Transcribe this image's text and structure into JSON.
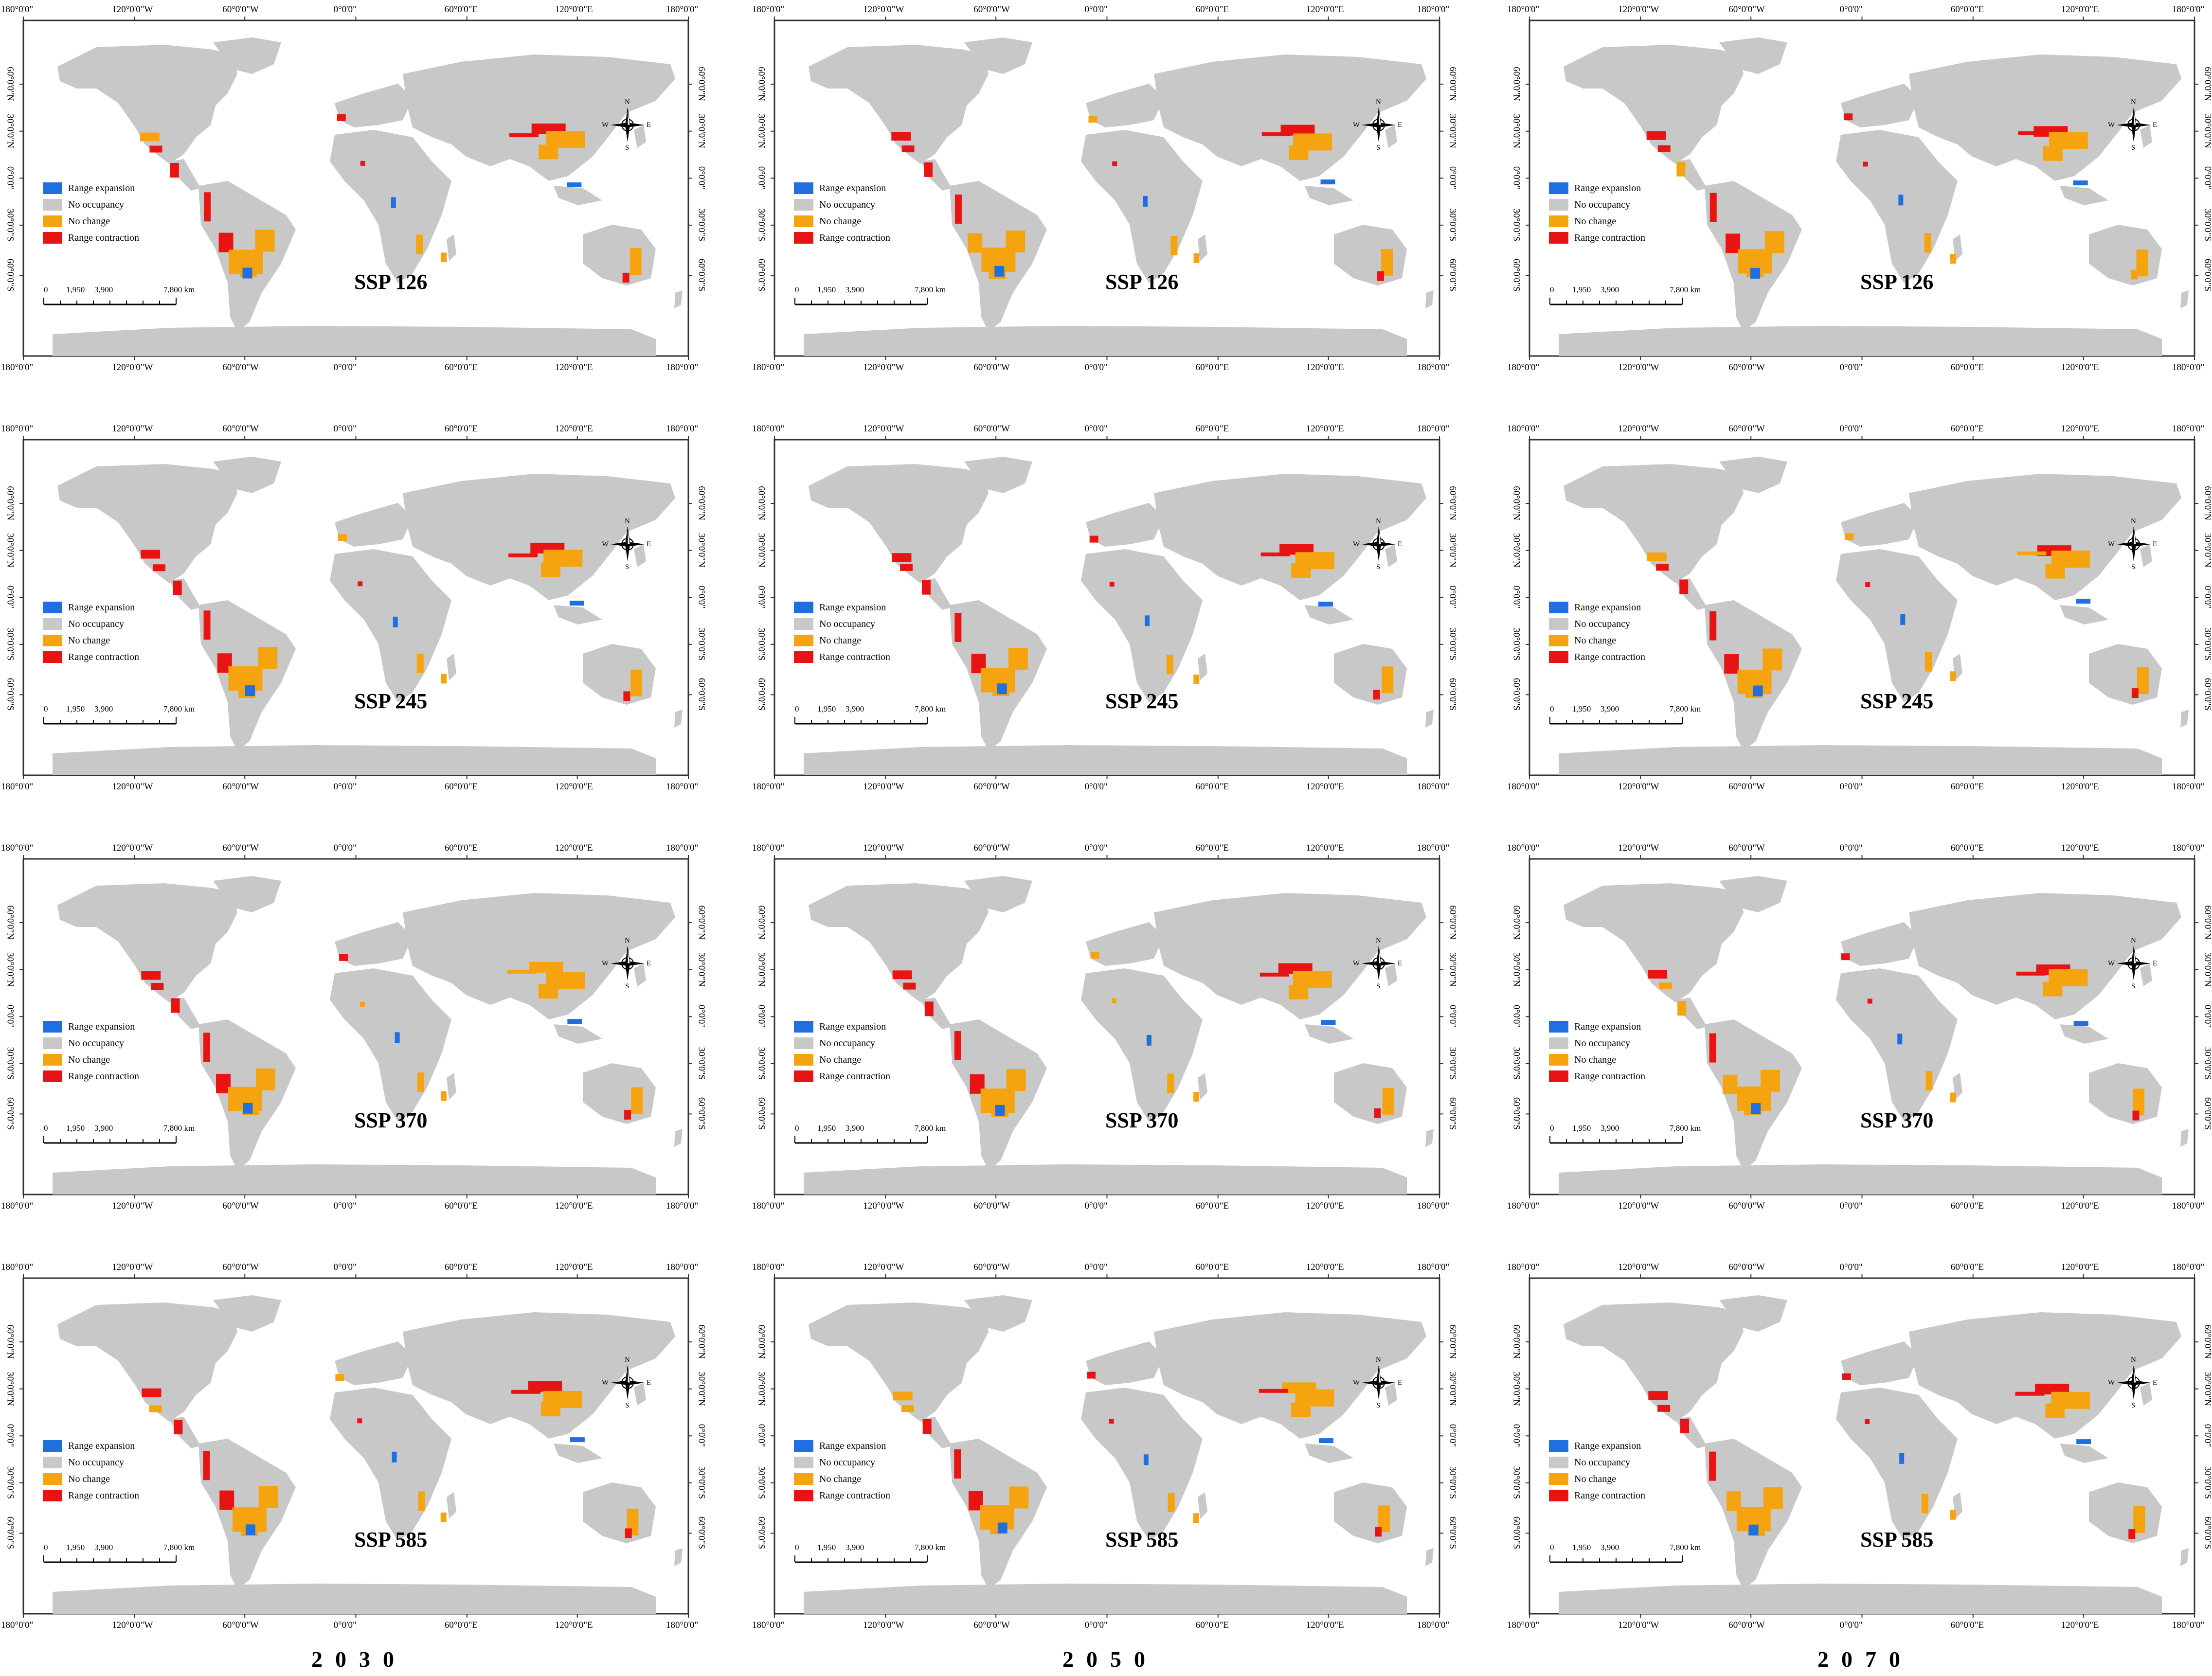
{
  "coord_labels": {
    "lon": [
      "180°0'0\"",
      "120°0'0\"W",
      "60°0'0\"W",
      "0°0'0\"",
      "60°0'0\"E",
      "120°0'0\"E",
      "180°0'0\""
    ],
    "lat": [
      "60°0'0\"N",
      "30°0'0\"N",
      "0°0'0\"",
      "30°0'0\"S",
      "60°0'0\"S"
    ]
  },
  "legend": [
    {
      "label": "Range expansion",
      "color": "#1f6fe0"
    },
    {
      "label": "No occupancy",
      "color": "#c8c8c8"
    },
    {
      "label": "No change",
      "color": "#f5a410"
    },
    {
      "label": "Range contraction",
      "color": "#e81414"
    }
  ],
  "scale_bar": {
    "labels": [
      "0",
      "1,950",
      "3,900",
      "7,800 km"
    ]
  },
  "compass": {
    "n": "N",
    "s": "S",
    "e": "E",
    "w": "W"
  },
  "scenarios": [
    "SSP 126",
    "SSP 245",
    "SSP 370",
    "SSP 585"
  ],
  "years": [
    "2030",
    "2050",
    "2070"
  ],
  "land_color": "#c8c8c8"
}
